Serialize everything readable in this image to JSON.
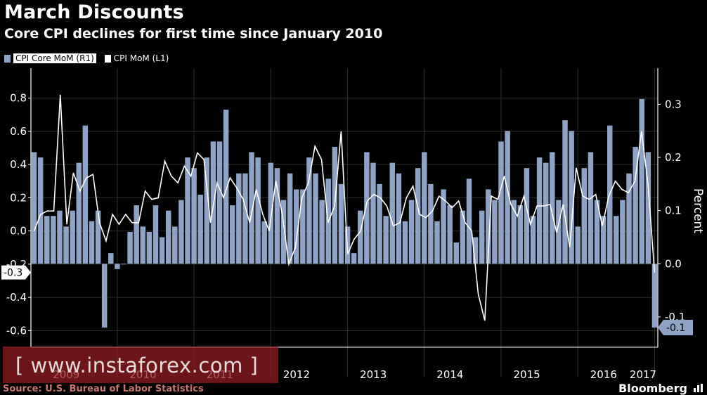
{
  "header": {
    "title": "March Discounts",
    "subtitle": "Core CPI declines for first time since January 2010"
  },
  "legend": [
    {
      "label": "CPI Core MoM (R1)",
      "kind": "bar",
      "color": "#8fa3c7"
    },
    {
      "label": "CPI MoM (L1)",
      "kind": "line",
      "color": "#ffffff"
    }
  ],
  "footer": {
    "source": "Source: U.S. Bureau of Labor Statistics",
    "brand": "Bloomberg",
    "watermark": "[ www.instaforex.com ]"
  },
  "chart_data": {
    "type": "bar",
    "title": "March Discounts",
    "subtitle": "Core CPI declines for first time since January 2010",
    "x_labels": [
      "2009",
      "2010",
      "2011",
      "2012",
      "2013",
      "2014",
      "2015",
      "2016",
      "2017"
    ],
    "left_axis": {
      "label": "",
      "ticks": [
        0.8,
        0.6,
        0.4,
        0.2,
        0.0,
        -0.2,
        -0.4,
        -0.6
      ],
      "tick_labels": [
        "0.8",
        "0.6",
        "0.4",
        "0.2",
        "0.0",
        "-0.2",
        "-0.4",
        "-0.6"
      ],
      "ylim": [
        -0.7,
        0.98
      ]
    },
    "right_axis": {
      "label": "Percent",
      "ticks": [
        0.3,
        0.2,
        0.1,
        0.0,
        -0.1
      ],
      "tick_labels": [
        "0.3",
        "0.2",
        "0.1",
        "0.0",
        "-0.1"
      ],
      "ylim": [
        -0.157,
        0.368
      ]
    },
    "last_value_labels": {
      "left": "-0.3",
      "right": "-0.1"
    },
    "series": [
      {
        "name": "CPI Core MoM (R1)",
        "axis": "right",
        "type": "bar",
        "color": "#8fa3c7",
        "values": [
          0.21,
          0.2,
          0.09,
          0.09,
          0.1,
          0.07,
          0.1,
          0.19,
          0.26,
          0.08,
          0.1,
          -0.12,
          0.02,
          -0.01,
          0.0,
          0.06,
          0.11,
          0.07,
          0.06,
          0.11,
          0.05,
          0.1,
          0.07,
          0.12,
          0.2,
          0.18,
          0.13,
          0.2,
          0.23,
          0.23,
          0.29,
          0.11,
          0.17,
          0.17,
          0.21,
          0.2,
          0.08,
          0.19,
          0.18,
          0.12,
          0.17,
          0.14,
          0.14,
          0.2,
          0.17,
          0.12,
          0.16,
          0.22,
          0.15,
          0.07,
          0.02,
          0.1,
          0.21,
          0.19,
          0.15,
          0.09,
          0.19,
          0.17,
          0.08,
          0.12,
          0.18,
          0.21,
          0.15,
          0.08,
          0.14,
          0.11,
          0.04,
          0.1,
          0.16,
          0.05,
          0.1,
          0.14,
          0.12,
          0.23,
          0.25,
          0.12,
          0.11,
          0.18,
          0.09,
          0.2,
          0.19,
          0.21,
          0.12,
          0.27,
          0.25,
          0.07,
          0.18,
          0.21,
          0.12,
          0.09,
          0.26,
          0.09,
          0.12,
          0.17,
          0.22,
          0.31,
          0.21,
          -0.12
        ]
      },
      {
        "name": "CPI MoM (L1)",
        "axis": "left",
        "type": "line",
        "color": "#ffffff",
        "values": [
          0.0,
          0.1,
          0.12,
          0.12,
          0.82,
          0.04,
          0.35,
          0.24,
          0.32,
          0.34,
          0.05,
          -0.06,
          0.1,
          0.04,
          0.1,
          0.05,
          0.05,
          0.24,
          0.19,
          0.2,
          0.42,
          0.33,
          0.29,
          0.39,
          0.33,
          0.47,
          0.43,
          0.05,
          0.29,
          0.2,
          0.32,
          0.26,
          0.19,
          0.05,
          0.25,
          0.1,
          0.0,
          0.3,
          0.1,
          -0.2,
          -0.1,
          0.2,
          0.29,
          0.51,
          0.43,
          0.05,
          0.15,
          0.6,
          -0.14,
          -0.05,
          0.0,
          0.18,
          0.22,
          0.2,
          0.15,
          0.03,
          0.05,
          0.2,
          0.27,
          0.1,
          0.08,
          0.12,
          0.21,
          0.18,
          0.14,
          0.18,
          0.05,
          0.0,
          -0.38,
          -0.54,
          0.21,
          0.19,
          0.33,
          0.16,
          0.09,
          0.21,
          0.04,
          0.15,
          0.15,
          0.16,
          -0.01,
          0.16,
          -0.1,
          0.38,
          0.21,
          0.19,
          0.22,
          0.03,
          0.21,
          0.3,
          0.25,
          0.23,
          0.3,
          0.6,
          0.28,
          -0.25
        ]
      }
    ]
  }
}
